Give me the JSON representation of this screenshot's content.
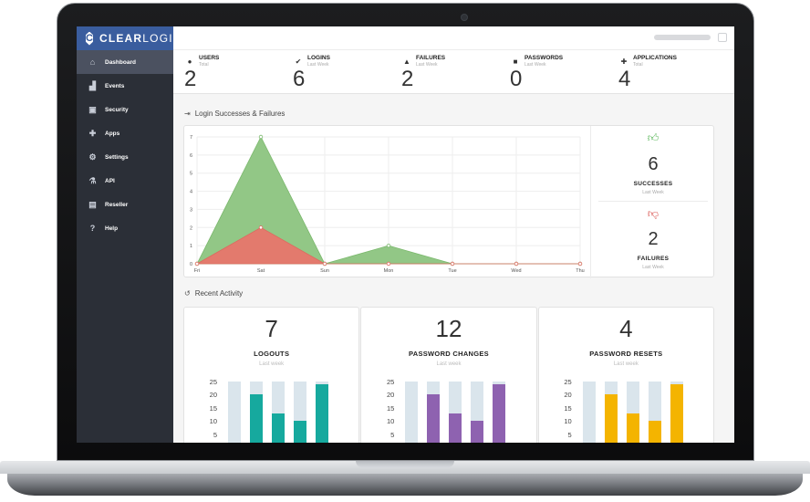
{
  "brand": {
    "name_bold": "CLEAR",
    "name_light": "LOGIN"
  },
  "sidebar": {
    "items": [
      {
        "label": "Dashboard",
        "icon": "home-icon",
        "glyph": "⌂",
        "active": true
      },
      {
        "label": "Events",
        "icon": "area-chart-icon",
        "glyph": "▟",
        "active": false
      },
      {
        "label": "Security",
        "icon": "lock-icon",
        "glyph": "▣",
        "active": false
      },
      {
        "label": "Apps",
        "icon": "puzzle-icon",
        "glyph": "✚",
        "active": false
      },
      {
        "label": "Settings",
        "icon": "gears-icon",
        "glyph": "⚙",
        "active": false
      },
      {
        "label": "API",
        "icon": "flask-icon",
        "glyph": "⚗",
        "active": false
      },
      {
        "label": "Reseller",
        "icon": "briefcase-icon",
        "glyph": "▤",
        "active": false
      },
      {
        "label": "Help",
        "icon": "question-icon",
        "glyph": "?",
        "active": false
      }
    ]
  },
  "stats": [
    {
      "label": "USERS",
      "sub": "Total",
      "value": "2",
      "icon": "user-icon",
      "glyph": "●"
    },
    {
      "label": "LOGINS",
      "sub": "Last Week",
      "value": "6",
      "icon": "check-icon",
      "glyph": "✔"
    },
    {
      "label": "FAILURES",
      "sub": "Last Week",
      "value": "2",
      "icon": "warning-icon",
      "glyph": "▲"
    },
    {
      "label": "PASSWORDS",
      "sub": "Last Week",
      "value": "0",
      "icon": "lock-icon",
      "glyph": "■"
    },
    {
      "label": "APPLICATIONS",
      "sub": "Total",
      "value": "4",
      "icon": "puzzle-icon",
      "glyph": "✚"
    }
  ],
  "login_section": {
    "title": "Login Successes & Failures",
    "icon_glyph": "⇥"
  },
  "activity_section": {
    "title": "Recent Activity",
    "icon_glyph": "↺"
  },
  "side_stats": {
    "success": {
      "value": "6",
      "label": "SUCCESSES",
      "sub": "Last Week"
    },
    "failure": {
      "value": "2",
      "label": "FAILURES",
      "sub": "Last Week"
    }
  },
  "colors": {
    "success_fill": "#8cc47f",
    "success_line": "#7ab86c",
    "failure_fill": "#e8766b",
    "failure_line": "#dc6a5f",
    "teal": "#16a99e",
    "purple": "#8e62b0",
    "amber": "#f4b400",
    "track": "#dae5ec"
  },
  "chart_data": {
    "type": "area",
    "categories": [
      "Fri",
      "Sat",
      "Sun",
      "Mon",
      "Tue",
      "Wed",
      "Thu"
    ],
    "series": [
      {
        "values": [
          0,
          7,
          0,
          1,
          0,
          0,
          0
        ]
      },
      {
        "values": [
          0,
          2,
          0,
          0,
          0,
          0,
          0
        ]
      }
    ],
    "yticks": [
      0,
      1,
      2,
      3,
      4,
      5,
      6,
      7
    ],
    "ylim": [
      0,
      7
    ],
    "grid": true
  },
  "activity": [
    {
      "value": "7",
      "label": "LOGOUTS",
      "sub": "Last week",
      "color": "#16a99e",
      "chart_data": {
        "type": "bar",
        "yticks": [
          25,
          20,
          15,
          10,
          5
        ],
        "track_max": 25,
        "values": [
          0,
          20,
          13,
          10,
          24
        ]
      }
    },
    {
      "value": "12",
      "label": "PASSWORD CHANGES",
      "sub": "Last week",
      "color": "#8e62b0",
      "chart_data": {
        "type": "bar",
        "yticks": [
          25,
          20,
          15,
          10,
          5
        ],
        "track_max": 25,
        "values": [
          0,
          20,
          13,
          10,
          24
        ]
      }
    },
    {
      "value": "4",
      "label": "PASSWORD RESETS",
      "sub": "Last week",
      "color": "#f4b400",
      "chart_data": {
        "type": "bar",
        "yticks": [
          25,
          20,
          15,
          10,
          5
        ],
        "track_max": 25,
        "values": [
          0,
          20,
          13,
          10,
          24
        ]
      }
    }
  ]
}
